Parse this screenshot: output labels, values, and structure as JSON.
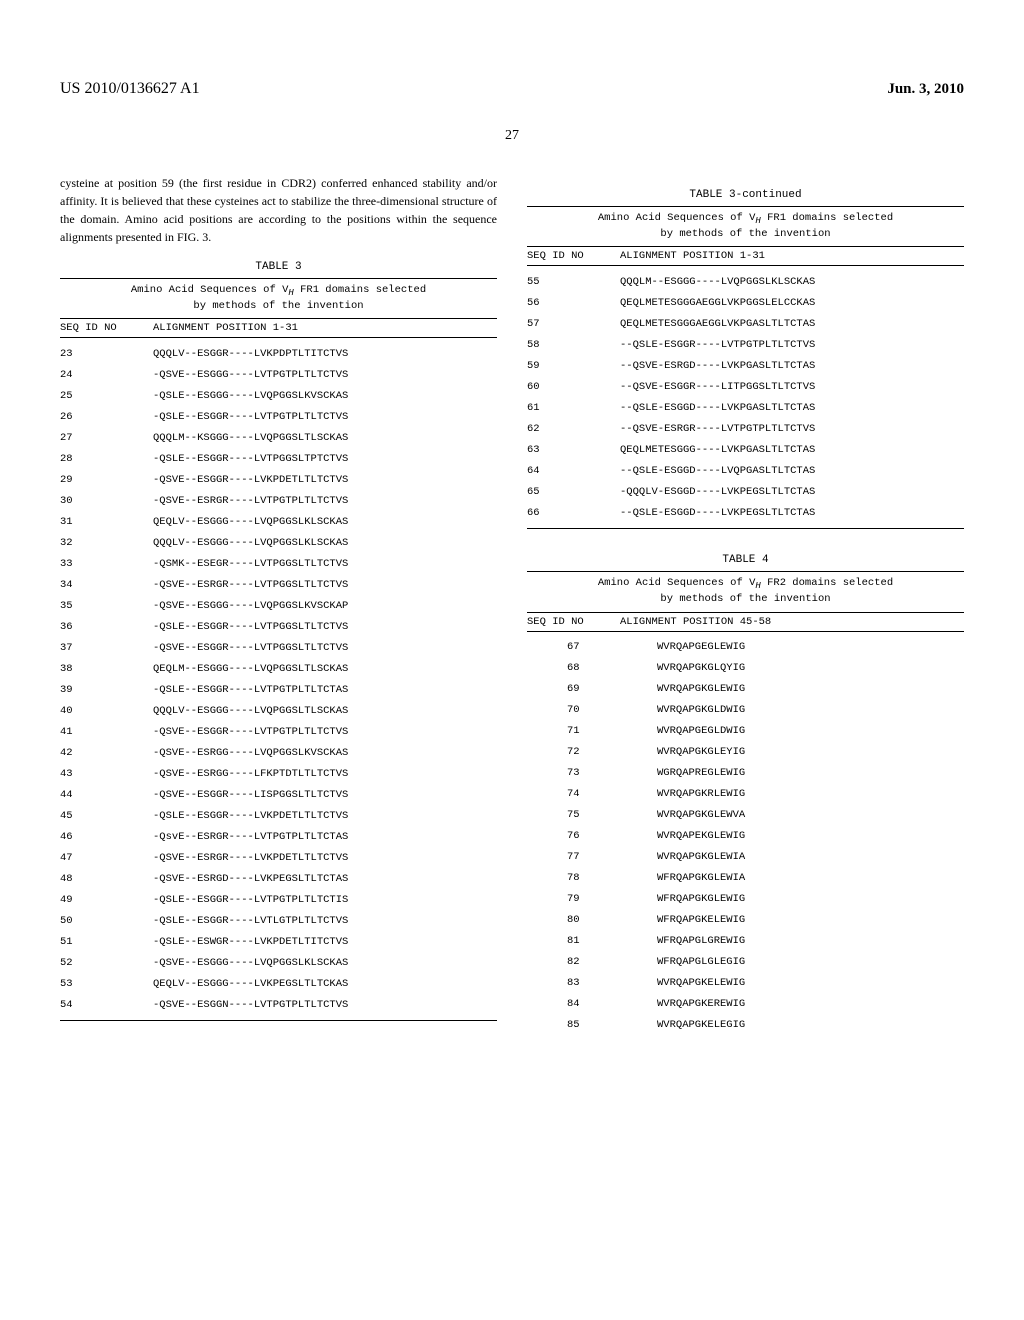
{
  "header": {
    "docId": "US 2010/0136627 A1",
    "date": "Jun. 3, 2010",
    "pageNum": "27"
  },
  "paragraph": "cysteine at position 59 (the first residue in CDR2) conferred enhanced stability and/or affinity. It is believed that these cysteines act to stabilize the three-dimensional structure of the domain. Amino acid positions are according to the positions within the sequence alignments presented in FIG. 3.",
  "table3": {
    "title": "TABLE 3",
    "titleCont": "TABLE 3-continued",
    "subtitle1": "Amino Acid Sequences of V",
    "subtitleSub": "H",
    "subtitle2": " FR1 domains selected",
    "subtitle3": "by methods of the invention",
    "headerCol1": "SEQ ID NO",
    "headerCol2": "ALIGNMENT POSITION 1-31",
    "rows": [
      {
        "id": "23",
        "seq": "QQQLV--ESGGR----LVKPDPTLTITCTVS"
      },
      {
        "id": "24",
        "seq": "-QSVE--ESGGG----LVTPGTPLTLTCTVS"
      },
      {
        "id": "25",
        "seq": "-QSLE--ESGGG----LVQPGGSLKVSCKAS"
      },
      {
        "id": "26",
        "seq": "-QSLE--ESGGR----LVTPGTPLTLTCTVS"
      },
      {
        "id": "27",
        "seq": "QQQLM--KSGGG----LVQPGGSLTLSCKAS"
      },
      {
        "id": "28",
        "seq": "-QSLE--ESGGR----LVTPGGSLTPTCTVS"
      },
      {
        "id": "29",
        "seq": "-QSVE--ESGGR----LVKPDETLTLTCTVS"
      },
      {
        "id": "30",
        "seq": "-QSVE--ESRGR----LVTPGTPLTLTCTVS"
      },
      {
        "id": "31",
        "seq": "QEQLV--ESGGG----LVQPGGSLKLSCKAS"
      },
      {
        "id": "32",
        "seq": "QQQLV--ESGGG----LVQPGGSLKLSCKAS"
      },
      {
        "id": "33",
        "seq": "-QSMK--ESEGR----LVTPGGSLTLTCTVS"
      },
      {
        "id": "34",
        "seq": "-QSVE--ESRGR----LVTPGGSLTLTCTVS"
      },
      {
        "id": "35",
        "seq": "-QSVE--ESGGG----LVQPGGSLKVSCKAP"
      },
      {
        "id": "36",
        "seq": "-QSLE--ESGGR----LVTPGGSLTLTCTVS"
      },
      {
        "id": "37",
        "seq": "-QSVE--ESGGR----LVTPGGSLTLTCTVS"
      },
      {
        "id": "38",
        "seq": "QEQLM--ESGGG----LVQPGGSLTLSCKAS"
      },
      {
        "id": "39",
        "seq": "-QSLE--ESGGR----LVTPGTPLTLTCTAS"
      },
      {
        "id": "40",
        "seq": "QQQLV--ESGGG----LVQPGGSLTLSCKAS"
      },
      {
        "id": "41",
        "seq": "-QSVE--ESGGR----LVTPGTPLTLTCTVS"
      },
      {
        "id": "42",
        "seq": "-QSVE--ESRGG----LVQPGGSLKVSCKAS"
      },
      {
        "id": "43",
        "seq": "-QSVE--ESRGG----LFKPTDTLTLTCTVS"
      },
      {
        "id": "44",
        "seq": "-QSVE--ESGGR----LISPGGSLTLTCTVS"
      },
      {
        "id": "45",
        "seq": "-QSLE--ESGGR----LVKPDETLTLTCTVS"
      },
      {
        "id": "46",
        "seq": "-QsvE--ESRGR----LVTPGTPLTLTCTAS"
      },
      {
        "id": "47",
        "seq": "-QSVE--ESRGR----LVKPDETLTLTCTVS"
      },
      {
        "id": "48",
        "seq": "-QSVE--ESRGD----LVKPEGSLTLTCTAS"
      },
      {
        "id": "49",
        "seq": "-QSLE--ESGGR----LVTPGTPLTLTCTIS"
      },
      {
        "id": "50",
        "seq": "-QSLE--ESGGR----LVTLGTPLTLTCTVS"
      },
      {
        "id": "51",
        "seq": "-QSLE--ESWGR----LVKPDETLTITCTVS"
      },
      {
        "id": "52",
        "seq": "-QSVE--ESGGG----LVQPGGSLKLSCKAS"
      },
      {
        "id": "53",
        "seq": "QEQLV--ESGGG----LVKPEGSLTLTCKAS"
      },
      {
        "id": "54",
        "seq": "-QSVE--ESGGN----LVTPGTPLTLTCTVS"
      }
    ],
    "rowsCont": [
      {
        "id": "55",
        "seq": "QQQLM--ESGGG----LVQPGGSLKLSCKAS"
      },
      {
        "id": "56",
        "seq": "QEQLMETESGGGAEGGLVKPGGSLELCCKAS"
      },
      {
        "id": "57",
        "seq": "QEQLMETESGGGAEGGLVKPGASLTLTCTAS"
      },
      {
        "id": "58",
        "seq": "--QSLE-ESGGR----LVTPGTPLTLTCTVS"
      },
      {
        "id": "59",
        "seq": "--QSVE-ESRGD----LVKPGASLTLTCTAS"
      },
      {
        "id": "60",
        "seq": "--QSVE-ESGGR----LITPGGSLTLTCTVS"
      },
      {
        "id": "61",
        "seq": "--QSLE-ESGGD----LVKPGASLTLTCTAS"
      },
      {
        "id": "62",
        "seq": "--QSVE-ESRGR----LVTPGTPLTLTCTVS"
      },
      {
        "id": "63",
        "seq": "QEQLMETESGGG----LVKPGASLTLTCTAS"
      },
      {
        "id": "64",
        "seq": "--QSLE-ESGGD----LVQPGASLTLTCTAS"
      },
      {
        "id": "65",
        "seq": "-QQQLV-ESGGD----LVKPEGSLTLTCTAS"
      },
      {
        "id": "66",
        "seq": "--QSLE-ESGGD----LVKPEGSLTLTCTAS"
      }
    ]
  },
  "table4": {
    "title": "TABLE 4",
    "subtitle1": "Amino Acid Sequences of V",
    "subtitleSub": "H",
    "subtitle2": " FR2 domains selected",
    "subtitle3": "by methods of the invention",
    "headerCol1": "SEQ ID NO",
    "headerCol2": "ALIGNMENT POSITION 45-58",
    "rows": [
      {
        "id": "67",
        "seq": "WVRQAPGEGLEWIG"
      },
      {
        "id": "68",
        "seq": "WVRQAPGKGLQYIG"
      },
      {
        "id": "69",
        "seq": "WVRQAPGKGLEWIG"
      },
      {
        "id": "70",
        "seq": "WVRQAPGKGLDWIG"
      },
      {
        "id": "71",
        "seq": "WVRQAPGEGLDWIG"
      },
      {
        "id": "72",
        "seq": "WVRQAPGKGLEYIG"
      },
      {
        "id": "73",
        "seq": "WGRQAPREGLEWIG"
      },
      {
        "id": "74",
        "seq": "WVRQAPGKRLEWIG"
      },
      {
        "id": "75",
        "seq": "WVRQAPGKGLEWVA"
      },
      {
        "id": "76",
        "seq": "WVRQAPEKGLEWIG"
      },
      {
        "id": "77",
        "seq": "WVRQAPGKGLEWIA"
      },
      {
        "id": "78",
        "seq": "WFRQAPGKGLEWIA"
      },
      {
        "id": "79",
        "seq": "WFRQAPGKGLEWIG"
      },
      {
        "id": "80",
        "seq": "WFRQAPGKELEWIG"
      },
      {
        "id": "81",
        "seq": "WFRQAPGLGREWIG"
      },
      {
        "id": "82",
        "seq": "WFRQAPGLGLEGIG"
      },
      {
        "id": "83",
        "seq": "WVRQAPGKELEWIG"
      },
      {
        "id": "84",
        "seq": "WVRQAPGKEREWIG"
      },
      {
        "id": "85",
        "seq": "WVRQAPGKELEGIG"
      }
    ]
  }
}
